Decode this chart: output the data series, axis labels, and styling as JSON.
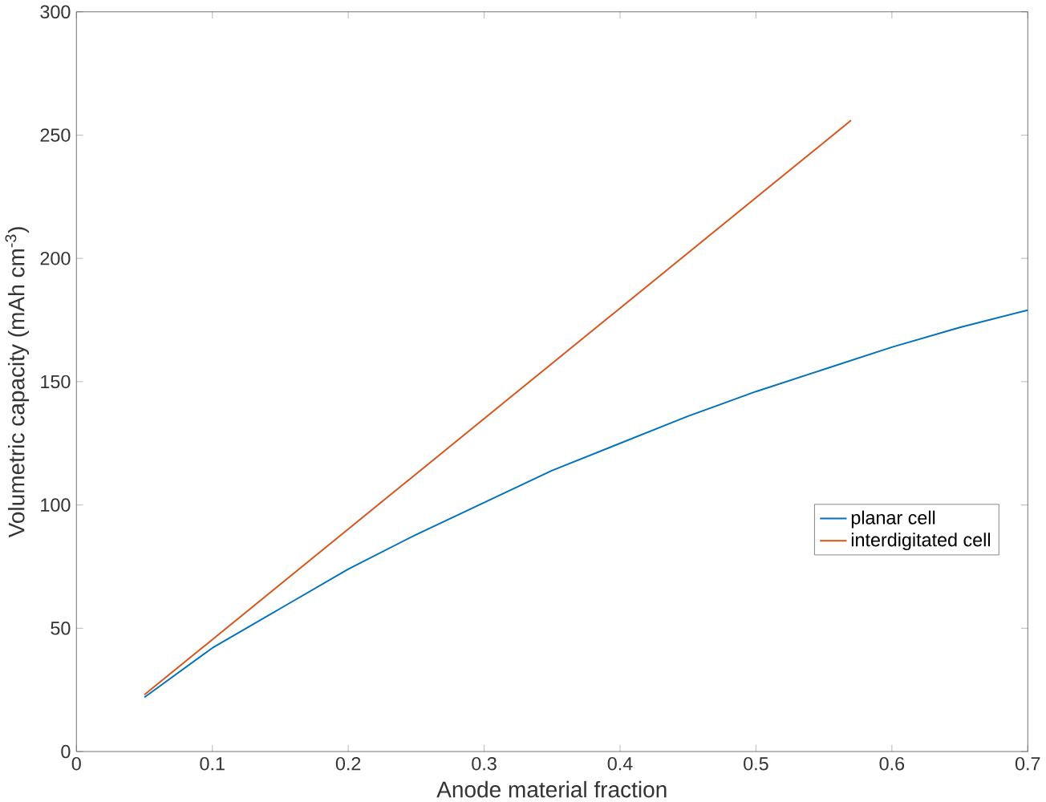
{
  "chart_data": {
    "type": "line",
    "xlabel": "Anode material fraction",
    "ylabel": "Volumetric capacity (mAh cm$^{-3}$)",
    "xlim": [
      0,
      0.7
    ],
    "ylim": [
      0,
      300
    ],
    "xticks": [
      0,
      0.1,
      0.2,
      0.3,
      0.4,
      0.5,
      0.6,
      0.7
    ],
    "yticks": [
      0,
      50,
      100,
      150,
      200,
      250,
      300
    ],
    "grid": false,
    "legend": "right",
    "line_style": "solid",
    "series": [
      {
        "name": "planar cell",
        "color": "#0072bd",
        "x": [
          0.05,
          0.1,
          0.15,
          0.2,
          0.25,
          0.3,
          0.35,
          0.4,
          0.45,
          0.5,
          0.55,
          0.6,
          0.65,
          0.7
        ],
        "values": [
          22,
          42,
          58,
          74,
          88,
          101,
          114,
          125,
          136,
          146,
          155,
          164,
          172,
          179
        ]
      },
      {
        "name": "interdigitated cell",
        "color": "#d95319",
        "x": [
          0.05,
          0.57
        ],
        "values": [
          23,
          256
        ]
      }
    ]
  }
}
